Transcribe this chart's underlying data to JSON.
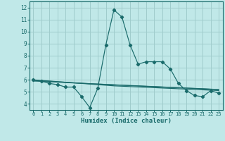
{
  "xlabel": "Humidex (Indice chaleur)",
  "background_color": "#c0e8e8",
  "grid_color": "#a0cccc",
  "line_color": "#1a6b6b",
  "spine_color": "#1a6b6b",
  "xlim": [
    -0.5,
    23.5
  ],
  "ylim": [
    3.5,
    12.5
  ],
  "xticks": [
    0,
    1,
    2,
    3,
    4,
    5,
    6,
    7,
    8,
    9,
    10,
    11,
    12,
    13,
    14,
    15,
    16,
    17,
    18,
    19,
    20,
    21,
    22,
    23
  ],
  "yticks": [
    4,
    5,
    6,
    7,
    8,
    9,
    10,
    11,
    12
  ],
  "series1_x": [
    0,
    1,
    2,
    3,
    4,
    5,
    6,
    7,
    8,
    9,
    10,
    11,
    12,
    13,
    14,
    15,
    16,
    17,
    18,
    19,
    20,
    21,
    22,
    23
  ],
  "series1_y": [
    6.0,
    5.9,
    5.7,
    5.6,
    5.4,
    5.4,
    4.6,
    3.7,
    5.3,
    8.9,
    11.8,
    11.2,
    8.9,
    7.3,
    7.5,
    7.5,
    7.5,
    6.9,
    5.7,
    5.1,
    4.7,
    4.6,
    5.1,
    4.9
  ],
  "series2_x": [
    0,
    1,
    2,
    3,
    4,
    5,
    6,
    7,
    8,
    9,
    10,
    11,
    12,
    13,
    14,
    15,
    16,
    17,
    18,
    19,
    20,
    21,
    22,
    23
  ],
  "series2_y": [
    6.0,
    5.95,
    5.9,
    5.85,
    5.8,
    5.75,
    5.7,
    5.65,
    5.6,
    5.55,
    5.5,
    5.47,
    5.44,
    5.41,
    5.38,
    5.35,
    5.32,
    5.29,
    5.26,
    5.23,
    5.2,
    5.17,
    5.14,
    5.11
  ],
  "series3_x": [
    0,
    1,
    2,
    3,
    4,
    5,
    6,
    7,
    8,
    9,
    10,
    11,
    12,
    13,
    14,
    15,
    16,
    17,
    18,
    19,
    20,
    21,
    22,
    23
  ],
  "series3_y": [
    5.95,
    5.92,
    5.88,
    5.84,
    5.8,
    5.76,
    5.72,
    5.68,
    5.65,
    5.62,
    5.58,
    5.55,
    5.52,
    5.49,
    5.46,
    5.43,
    5.4,
    5.37,
    5.34,
    5.31,
    5.28,
    5.25,
    5.22,
    5.19
  ],
  "series4_x": [
    0,
    1,
    2,
    3,
    4,
    5,
    6,
    7,
    8,
    9,
    10,
    11,
    12,
    13,
    14,
    15,
    16,
    17,
    18,
    19,
    20,
    21,
    22,
    23
  ],
  "series4_y": [
    5.9,
    5.87,
    5.84,
    5.81,
    5.77,
    5.74,
    5.71,
    5.68,
    5.65,
    5.62,
    5.59,
    5.56,
    5.53,
    5.5,
    5.47,
    5.44,
    5.41,
    5.38,
    5.35,
    5.32,
    5.29,
    5.26,
    5.23,
    5.2
  ]
}
